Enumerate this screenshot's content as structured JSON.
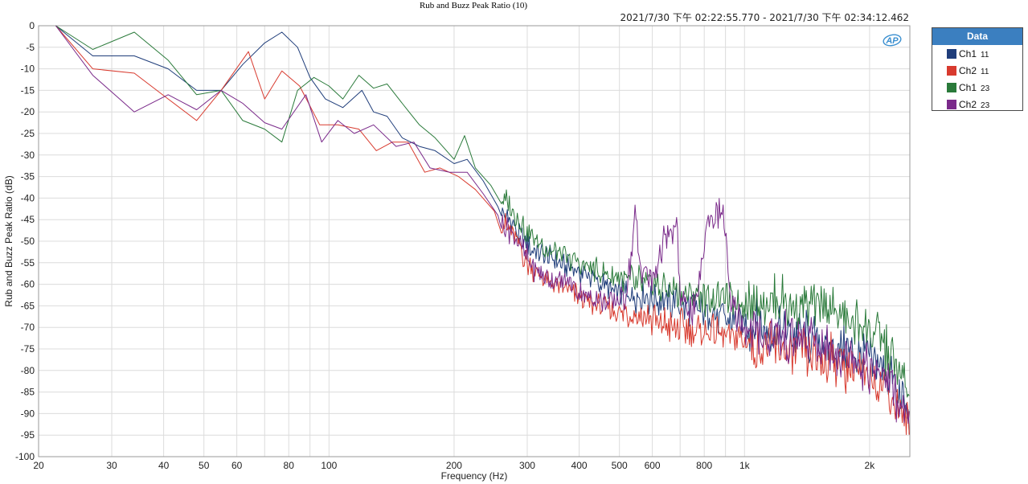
{
  "timestamp": "2021/7/30 下午 02:22:55.770 - 2021/7/30 下午 02:34:12.462",
  "legend": {
    "title": "Data",
    "items": [
      {
        "label": "Ch1",
        "sub": "11",
        "color": "#1f3d7a"
      },
      {
        "label": "Ch2",
        "sub": "11",
        "color": "#d83a2e"
      },
      {
        "label": "Ch1",
        "sub": "23",
        "color": "#2a7a3a"
      },
      {
        "label": "Ch2",
        "sub": "23",
        "color": "#7a2a8a"
      }
    ]
  },
  "logo": {
    "text": "AP",
    "color": "#3a8fd0"
  },
  "chart_data": {
    "type": "line",
    "title": "Rub and Buzz Peak Ratio (10)",
    "xlabel": "Frequency (Hz)",
    "ylabel": "Rub and Buzz Peak Ratio (dB)",
    "x_scale": "log",
    "xlim": [
      20,
      2500
    ],
    "ylim": [
      -100,
      0
    ],
    "grid": true,
    "legend_position": "right",
    "x_ticks": [
      {
        "v": 20,
        "label": "20"
      },
      {
        "v": 30,
        "label": "30"
      },
      {
        "v": 40,
        "label": "40"
      },
      {
        "v": 50,
        "label": "50"
      },
      {
        "v": 60,
        "label": "60"
      },
      {
        "v": 80,
        "label": "80"
      },
      {
        "v": 100,
        "label": "100"
      },
      {
        "v": 200,
        "label": "200"
      },
      {
        "v": 300,
        "label": "300"
      },
      {
        "v": 400,
        "label": "400"
      },
      {
        "v": 500,
        "label": "500"
      },
      {
        "v": 600,
        "label": "600"
      },
      {
        "v": 800,
        "label": "800"
      },
      {
        "v": 1000,
        "label": "1k"
      },
      {
        "v": 2000,
        "label": "2k"
      }
    ],
    "x_minor": [
      70,
      90,
      700,
      900
    ],
    "y_ticks": [
      0,
      -5,
      -10,
      -15,
      -20,
      -25,
      -30,
      -35,
      -40,
      -45,
      -50,
      -55,
      -60,
      -65,
      -70,
      -75,
      -80,
      -85,
      -90,
      -95,
      -100
    ],
    "series": [
      {
        "name": "Ch1 11",
        "color": "#1f3d7a",
        "points": [
          [
            22,
            1
          ],
          [
            27,
            -7
          ],
          [
            34,
            -7
          ],
          [
            41,
            -10
          ],
          [
            48,
            -15
          ],
          [
            55,
            -15
          ],
          [
            62,
            -9
          ],
          [
            70,
            -4
          ],
          [
            77,
            -1.5
          ],
          [
            84,
            -5
          ],
          [
            90,
            -12
          ],
          [
            98,
            -17
          ],
          [
            108,
            -19
          ],
          [
            120,
            -15
          ],
          [
            128,
            -20
          ],
          [
            138,
            -21
          ],
          [
            150,
            -26
          ],
          [
            165,
            -28
          ],
          [
            180,
            -29
          ],
          [
            200,
            -32
          ],
          [
            215,
            -31
          ],
          [
            235,
            -36
          ],
          [
            255,
            -42
          ],
          [
            280,
            -47
          ],
          [
            310,
            -52
          ],
          [
            340,
            -54
          ],
          [
            380,
            -56
          ],
          [
            420,
            -58
          ],
          [
            470,
            -61
          ],
          [
            520,
            -62
          ],
          [
            580,
            -63
          ],
          [
            650,
            -64
          ],
          [
            720,
            -65
          ],
          [
            800,
            -66
          ],
          [
            900,
            -68
          ],
          [
            1000,
            -69
          ],
          [
            1200,
            -71
          ],
          [
            1500,
            -73
          ],
          [
            1800,
            -76
          ],
          [
            2200,
            -80
          ],
          [
            2480,
            -90
          ]
        ]
      },
      {
        "name": "Ch2 11",
        "color": "#d83a2e",
        "points": [
          [
            22,
            1
          ],
          [
            27,
            -10
          ],
          [
            34,
            -11
          ],
          [
            41,
            -17
          ],
          [
            48,
            -22
          ],
          [
            55,
            -15
          ],
          [
            64,
            -6
          ],
          [
            70,
            -17
          ],
          [
            77,
            -10.5
          ],
          [
            85,
            -14
          ],
          [
            95,
            -23
          ],
          [
            105,
            -23
          ],
          [
            118,
            -24
          ],
          [
            130,
            -29
          ],
          [
            142,
            -27
          ],
          [
            155,
            -27
          ],
          [
            170,
            -34
          ],
          [
            185,
            -33
          ],
          [
            205,
            -35
          ],
          [
            225,
            -38
          ],
          [
            250,
            -43
          ],
          [
            275,
            -48
          ],
          [
            300,
            -55
          ],
          [
            330,
            -59
          ],
          [
            370,
            -61
          ],
          [
            420,
            -64
          ],
          [
            480,
            -66
          ],
          [
            550,
            -67
          ],
          [
            620,
            -69
          ],
          [
            700,
            -70
          ],
          [
            800,
            -71
          ],
          [
            900,
            -72
          ],
          [
            1000,
            -73
          ],
          [
            1200,
            -75
          ],
          [
            1500,
            -77
          ],
          [
            1800,
            -79
          ],
          [
            2200,
            -84
          ],
          [
            2480,
            -92
          ]
        ]
      },
      {
        "name": "Ch1 23",
        "color": "#2a7a3a",
        "points": [
          [
            22,
            1
          ],
          [
            27,
            -5.5
          ],
          [
            34,
            -1.5
          ],
          [
            41,
            -8
          ],
          [
            48,
            -16
          ],
          [
            55,
            -15
          ],
          [
            62,
            -22
          ],
          [
            70,
            -24
          ],
          [
            77,
            -27
          ],
          [
            84,
            -15
          ],
          [
            92,
            -12
          ],
          [
            100,
            -14
          ],
          [
            108,
            -17
          ],
          [
            118,
            -11.5
          ],
          [
            128,
            -14.5
          ],
          [
            138,
            -13.5
          ],
          [
            150,
            -18
          ],
          [
            165,
            -23
          ],
          [
            180,
            -26
          ],
          [
            200,
            -31
          ],
          [
            212,
            -25.5
          ],
          [
            225,
            -33
          ],
          [
            245,
            -37
          ],
          [
            270,
            -41
          ],
          [
            300,
            -48
          ],
          [
            335,
            -52
          ],
          [
            375,
            -54
          ],
          [
            420,
            -56
          ],
          [
            470,
            -58
          ],
          [
            520,
            -59
          ],
          [
            580,
            -60
          ],
          [
            650,
            -61
          ],
          [
            720,
            -62
          ],
          [
            800,
            -63
          ],
          [
            900,
            -63
          ],
          [
            1000,
            -64
          ],
          [
            1200,
            -64
          ],
          [
            1500,
            -65
          ],
          [
            1800,
            -68
          ],
          [
            2100,
            -72
          ],
          [
            2480,
            -85
          ]
        ]
      },
      {
        "name": "Ch2 23",
        "color": "#7a2a8a",
        "points": [
          [
            22,
            1
          ],
          [
            27,
            -11.5
          ],
          [
            34,
            -20
          ],
          [
            41,
            -16
          ],
          [
            48,
            -19.5
          ],
          [
            55,
            -15
          ],
          [
            62,
            -18
          ],
          [
            70,
            -22.5
          ],
          [
            77,
            -24
          ],
          [
            88,
            -16
          ],
          [
            96,
            -27
          ],
          [
            105,
            -22
          ],
          [
            115,
            -25
          ],
          [
            128,
            -23
          ],
          [
            145,
            -28
          ],
          [
            160,
            -27
          ],
          [
            175,
            -33
          ],
          [
            195,
            -34
          ],
          [
            215,
            -34
          ],
          [
            235,
            -39
          ],
          [
            255,
            -44
          ],
          [
            280,
            -49
          ],
          [
            310,
            -56
          ],
          [
            340,
            -59
          ],
          [
            380,
            -60
          ],
          [
            420,
            -63
          ],
          [
            470,
            -64
          ],
          [
            510,
            -64
          ],
          [
            530,
            -57
          ],
          [
            545,
            -43
          ],
          [
            560,
            -56
          ],
          [
            600,
            -59
          ],
          [
            640,
            -50
          ],
          [
            690,
            -48
          ],
          [
            700,
            -63
          ],
          [
            760,
            -67
          ],
          [
            790,
            -55
          ],
          [
            810,
            -46
          ],
          [
            840,
            -44
          ],
          [
            880,
            -42
          ],
          [
            900,
            -46
          ],
          [
            920,
            -65
          ],
          [
            1000,
            -70
          ],
          [
            1200,
            -72
          ],
          [
            1500,
            -74
          ],
          [
            1800,
            -77
          ],
          [
            2200,
            -82
          ],
          [
            2480,
            -93
          ]
        ]
      }
    ]
  }
}
